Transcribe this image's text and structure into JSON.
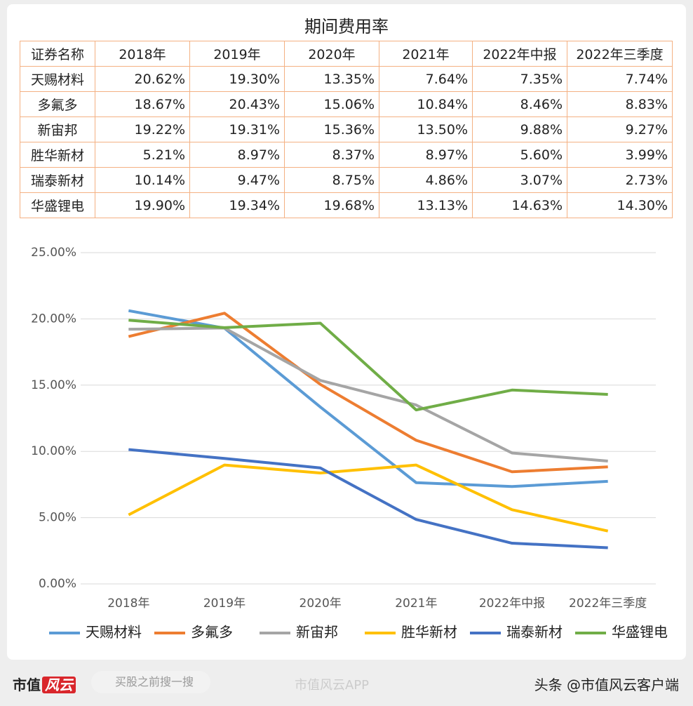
{
  "title": "期间费用率",
  "table": {
    "header": [
      "证券名称",
      "2018年",
      "2019年",
      "2020年",
      "2021年",
      "2022年中报",
      "2022年三季度"
    ],
    "rows": [
      [
        "天赐材料",
        "20.62%",
        "19.30%",
        "13.35%",
        "7.64%",
        "7.35%",
        "7.74%"
      ],
      [
        "多氟多",
        "18.67%",
        "20.43%",
        "15.06%",
        "10.84%",
        "8.46%",
        "8.83%"
      ],
      [
        "新宙邦",
        "19.22%",
        "19.31%",
        "15.36%",
        "13.50%",
        "9.88%",
        "9.27%"
      ],
      [
        "胜华新材",
        "5.21%",
        "8.97%",
        "8.37%",
        "8.97%",
        "5.60%",
        "3.99%"
      ],
      [
        "瑞泰新材",
        "10.14%",
        "9.47%",
        "8.75%",
        "4.86%",
        "3.07%",
        "2.73%"
      ],
      [
        "华盛锂电",
        "19.90%",
        "19.34%",
        "19.68%",
        "13.13%",
        "14.63%",
        "14.30%"
      ]
    ]
  },
  "chart_data": {
    "type": "line",
    "categories": [
      "2018年",
      "2019年",
      "2020年",
      "2021年",
      "2022年中报",
      "2022年三季度"
    ],
    "series": [
      {
        "name": "天赐材料",
        "color": "#5b9bd5",
        "values": [
          20.62,
          19.3,
          13.35,
          7.64,
          7.35,
          7.74
        ]
      },
      {
        "name": "多氟多",
        "color": "#ed7d31",
        "values": [
          18.67,
          20.43,
          15.06,
          10.84,
          8.46,
          8.83
        ]
      },
      {
        "name": "新宙邦",
        "color": "#a5a5a5",
        "values": [
          19.22,
          19.31,
          15.36,
          13.5,
          9.88,
          9.27
        ]
      },
      {
        "name": "胜华新材",
        "color": "#ffc000",
        "values": [
          5.21,
          8.97,
          8.37,
          8.97,
          5.6,
          3.99
        ]
      },
      {
        "name": "瑞泰新材",
        "color": "#4472c4",
        "values": [
          10.14,
          9.47,
          8.75,
          4.86,
          3.07,
          2.73
        ]
      },
      {
        "name": "华盛锂电",
        "color": "#70ad47",
        "values": [
          19.9,
          19.34,
          19.68,
          13.13,
          14.63,
          14.3
        ]
      }
    ],
    "ylim": [
      0,
      25
    ],
    "yticks": [
      {
        "value": 0,
        "label": "0.00%"
      },
      {
        "value": 5,
        "label": "5.00%"
      },
      {
        "value": 10,
        "label": "10.00%"
      },
      {
        "value": 15,
        "label": "15.00%"
      },
      {
        "value": 20,
        "label": "20.00%"
      },
      {
        "value": 25,
        "label": "25.00%"
      }
    ],
    "grid": true,
    "legend": "bottom"
  },
  "footer": {
    "logo": "市值",
    "logo_mark": "风云",
    "search": "买股之前搜一搜",
    "watermark": "市值风云APP",
    "credit": "头条 @市值风云客户端"
  }
}
